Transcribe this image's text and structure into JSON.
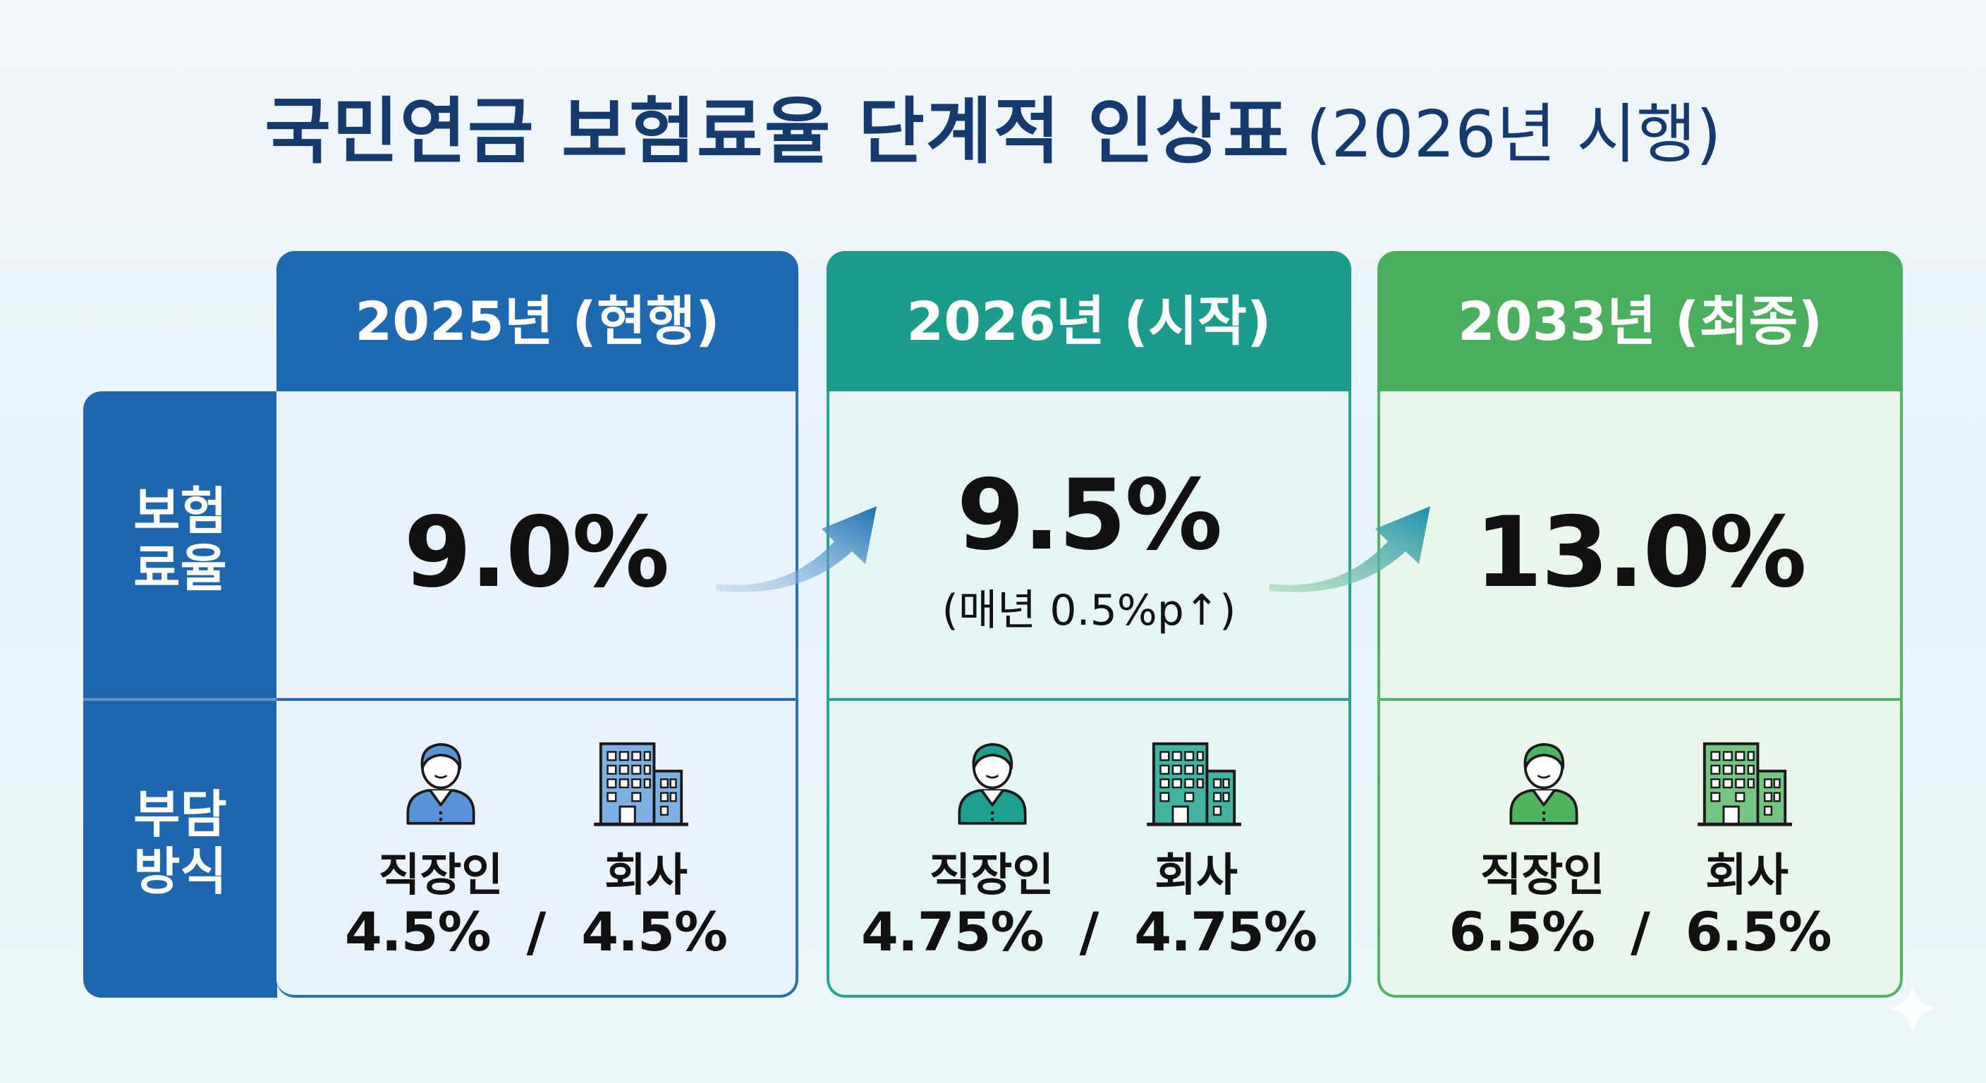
{
  "title": {
    "main": "국민연금 보험료율 단계적 인상표",
    "sub": "(2026년 시행)"
  },
  "row_labels": {
    "rate": [
      "보험",
      "료율"
    ],
    "burden": [
      "부담",
      "방식"
    ]
  },
  "columns": [
    {
      "header": "2025년 (현행)",
      "rate": "9.0%",
      "note": "",
      "employee_label": "직장인",
      "company_label": "회사",
      "employee_rate": "4.5%",
      "separator": "/",
      "company_rate": "4.5%",
      "color": "#1f69b0"
    },
    {
      "header": "2026년 (시작)",
      "rate": "9.5%",
      "note": "(매년 0.5%p↑)",
      "employee_label": "직장인",
      "company_label": "회사",
      "employee_rate": "4.75%",
      "separator": "/",
      "company_rate": "4.75%",
      "color": "#1b9c8a"
    },
    {
      "header": "2033년 (최종)",
      "rate": "13.0%",
      "note": "",
      "employee_label": "직장인",
      "company_label": "회사",
      "employee_rate": "6.5%",
      "separator": "/",
      "company_rate": "6.5%",
      "color": "#4aae5c"
    }
  ],
  "icons": [
    "person-icon",
    "building-icon",
    "arrow-icon",
    "sparkle-icon"
  ]
}
